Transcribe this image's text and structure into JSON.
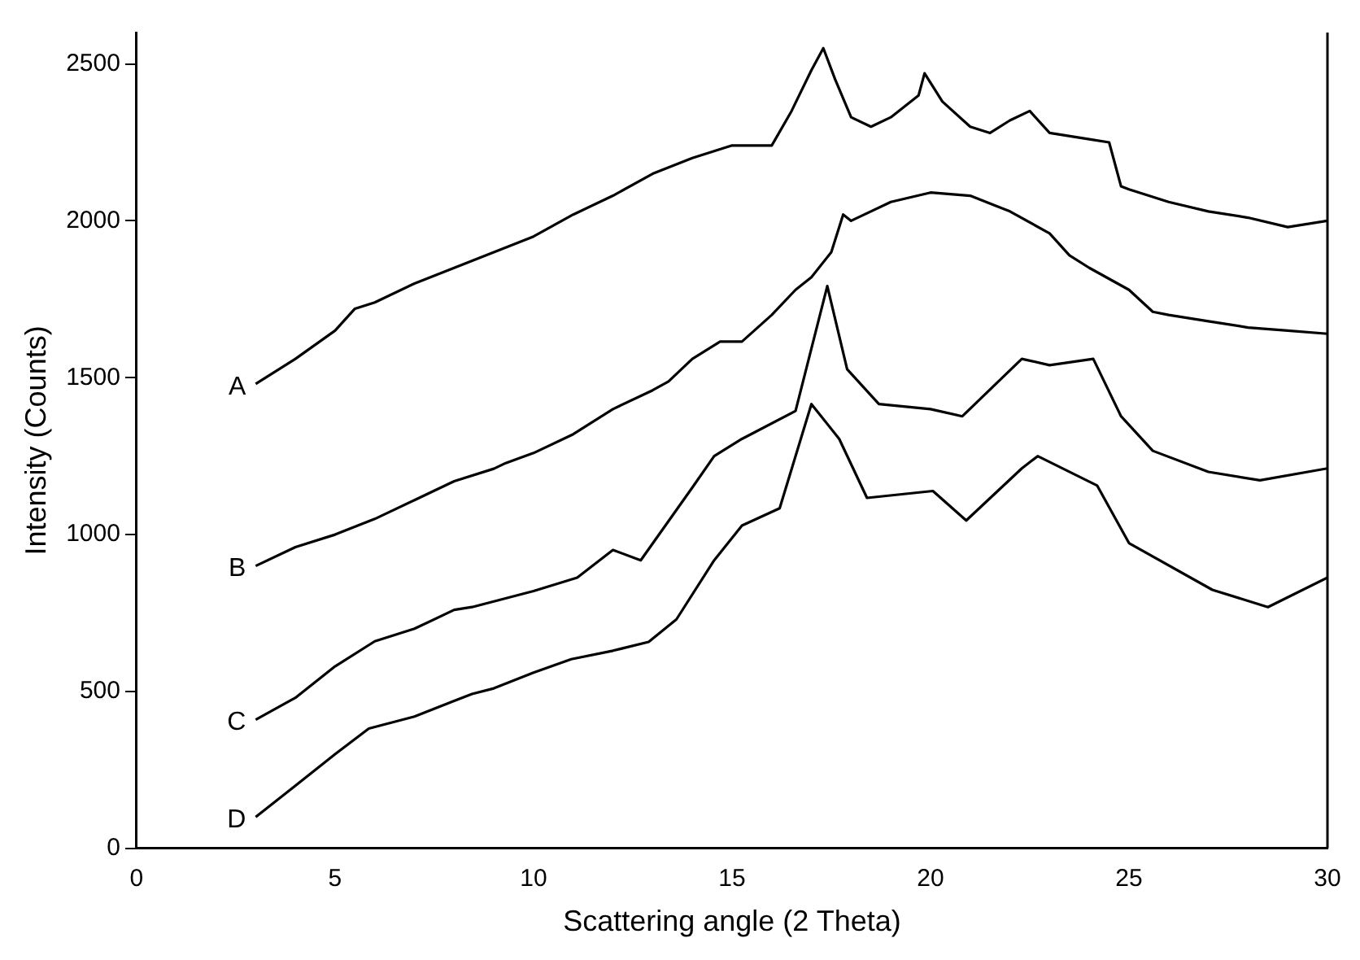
{
  "chart_data": {
    "type": "line",
    "xlabel": "Scattering angle (2 Theta)",
    "ylabel": "Intensity (Counts)",
    "xlim": [
      0,
      30
    ],
    "xticks": [
      0,
      5,
      10,
      15,
      20,
      25,
      30
    ],
    "ylim": [
      0,
      2600
    ],
    "yticks": [
      0,
      500,
      1000,
      1500,
      2000,
      2500
    ],
    "grid": false,
    "legend": false,
    "marker": "none",
    "line_style": "solid",
    "series": [
      {
        "name": "A",
        "color": "#000000",
        "x": [
          3,
          4,
          5,
          5.5,
          6,
          7,
          8,
          9,
          10,
          11,
          12,
          13,
          14,
          15,
          16,
          16.5,
          17,
          17.3,
          17.6,
          18,
          18.5,
          19,
          19.7,
          19.85,
          20.3,
          21,
          21.5,
          22,
          22.5,
          23,
          24,
          24.5,
          24.8,
          25,
          26,
          27,
          28,
          29,
          30
        ],
        "values": [
          1480,
          1560,
          1650,
          1720,
          1740,
          1800,
          1850,
          1900,
          1950,
          2020,
          2080,
          2150,
          2200,
          2240,
          2240,
          2350,
          2480,
          2550,
          2450,
          2330,
          2300,
          2330,
          2400,
          2470,
          2380,
          2300,
          2280,
          2320,
          2350,
          2280,
          2260,
          2250,
          2110,
          2100,
          2060,
          2030,
          2010,
          1980,
          2000
        ]
      },
      {
        "name": "B",
        "color": "#000000",
        "x": [
          3,
          4,
          5,
          6,
          7,
          8,
          9,
          9.3,
          10,
          11,
          12,
          13,
          13.4,
          14,
          14.7,
          15.25,
          16,
          16.6,
          17,
          17.5,
          17.8,
          18,
          19,
          20,
          21,
          22,
          23,
          23.5,
          24,
          25,
          25.6,
          26,
          27,
          28,
          29,
          30
        ],
        "values": [
          900,
          960,
          1000,
          1050,
          1110,
          1170,
          1210,
          1228,
          1260,
          1320,
          1400,
          1460,
          1488,
          1560,
          1615,
          1615,
          1700,
          1780,
          1820,
          1900,
          2020,
          2000,
          2060,
          2090,
          2080,
          2030,
          1960,
          1890,
          1850,
          1780,
          1710,
          1700,
          1680,
          1660,
          1650,
          1640
        ]
      },
      {
        "name": "C",
        "color": "#000000",
        "x": [
          3,
          4,
          5,
          6,
          7,
          8,
          8.45,
          10,
          11.1,
          12,
          12.7,
          14,
          14.55,
          15.25,
          16.6,
          17.4,
          17.9,
          18.7,
          20,
          20.8,
          22.3,
          23,
          24.1,
          24.8,
          25.6,
          27,
          28.3,
          30
        ],
        "values": [
          410,
          480,
          580,
          660,
          700,
          760,
          769,
          820,
          863,
          951,
          918,
          1150,
          1250,
          1305,
          1394,
          1792,
          1527,
          1416,
          1400,
          1377,
          1560,
          1540,
          1560,
          1377,
          1267,
          1200,
          1173,
          1211
        ]
      },
      {
        "name": "D",
        "color": "#000000",
        "x": [
          3,
          4,
          5,
          5.85,
          7,
          8,
          8.45,
          9,
          10,
          10.95,
          12,
          12.9,
          13.6,
          14.55,
          15.25,
          16.2,
          17,
          17.7,
          18.4,
          20.06,
          20.9,
          22.3,
          22.7,
          24.2,
          25,
          27.1,
          28.5,
          30
        ],
        "values": [
          100,
          200,
          300,
          382,
          420,
          470,
          492,
          510,
          560,
          603,
          630,
          658,
          730,
          918,
          1029,
          1084,
          1416,
          1305,
          1117,
          1139,
          1045,
          1211,
          1250,
          1156,
          973,
          824,
          769,
          863
        ]
      }
    ]
  }
}
